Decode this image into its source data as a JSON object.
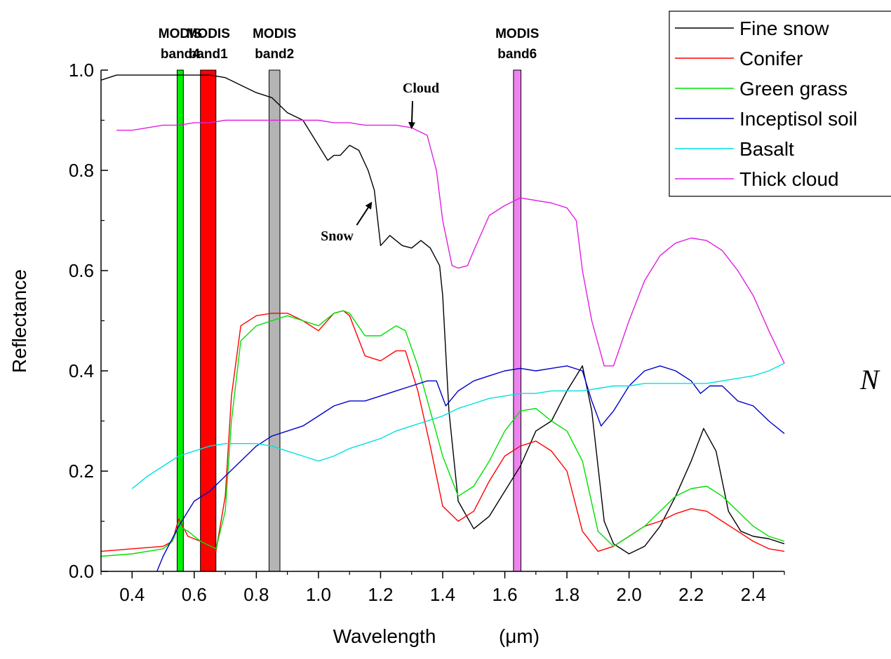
{
  "chart_data": {
    "type": "line",
    "xlabel": "Wavelength",
    "xunit": "(μm)",
    "ylabel": "Reflectance",
    "xlim": [
      0.3,
      2.5
    ],
    "ylim": [
      0.0,
      1.0
    ],
    "x_ticks": [
      "0.4",
      "0.6",
      "0.8",
      "1.0",
      "1.2",
      "1.4",
      "1.6",
      "1.8",
      "2.0",
      "2.2",
      "2.4"
    ],
    "x_tick_values": [
      0.4,
      0.6,
      0.8,
      1.0,
      1.2,
      1.4,
      1.6,
      1.8,
      2.0,
      2.2,
      2.4
    ],
    "y_ticks": [
      "0.0",
      "0.2",
      "0.4",
      "0.6",
      "0.8",
      "1.0"
    ],
    "y_tick_values": [
      0.0,
      0.2,
      0.4,
      0.6,
      0.8,
      1.0
    ],
    "legend_position": "top-right",
    "bands": [
      {
        "line1": "MODIS",
        "line2": "band4",
        "x_start": 0.545,
        "x_end": 0.565,
        "color": "#00ee00"
      },
      {
        "line1": "MODIS",
        "line2": "band1",
        "x_start": 0.62,
        "x_end": 0.67,
        "color": "#ff0000"
      },
      {
        "line1": "MODIS",
        "line2": "band2",
        "x_start": 0.841,
        "x_end": 0.876,
        "color": "#b4b4b4"
      },
      {
        "line1": "MODIS",
        "line2": "band6",
        "x_start": 1.628,
        "x_end": 1.652,
        "color": "#ee82ee"
      }
    ],
    "annotations": [
      {
        "text": "Cloud",
        "x": 1.33,
        "y": 0.955,
        "arrow_to": [
          1.3,
          0.885
        ]
      },
      {
        "text": "Snow",
        "x": 1.06,
        "y": 0.66,
        "arrow_to": [
          1.17,
          0.735
        ]
      }
    ],
    "side_text": "N",
    "series": [
      {
        "name": "Fine snow",
        "color": "#000000",
        "x": [
          0.3,
          0.35,
          0.4,
          0.45,
          0.5,
          0.55,
          0.6,
          0.65,
          0.7,
          0.75,
          0.8,
          0.85,
          0.9,
          0.95,
          1.0,
          1.03,
          1.05,
          1.07,
          1.1,
          1.13,
          1.16,
          1.18,
          1.2,
          1.23,
          1.27,
          1.3,
          1.33,
          1.36,
          1.39,
          1.4,
          1.42,
          1.45,
          1.5,
          1.55,
          1.6,
          1.65,
          1.7,
          1.75,
          1.8,
          1.85,
          1.88,
          1.92,
          1.95,
          2.0,
          2.05,
          2.1,
          2.15,
          2.2,
          2.24,
          2.28,
          2.32,
          2.36,
          2.4,
          2.45,
          2.5
        ],
        "y": [
          0.98,
          0.99,
          0.99,
          0.99,
          0.99,
          0.99,
          0.99,
          0.99,
          0.985,
          0.97,
          0.955,
          0.945,
          0.915,
          0.9,
          0.85,
          0.82,
          0.83,
          0.83,
          0.85,
          0.84,
          0.8,
          0.76,
          0.65,
          0.67,
          0.65,
          0.645,
          0.66,
          0.645,
          0.61,
          0.55,
          0.32,
          0.14,
          0.085,
          0.11,
          0.16,
          0.21,
          0.28,
          0.3,
          0.36,
          0.41,
          0.32,
          0.1,
          0.055,
          0.035,
          0.05,
          0.09,
          0.15,
          0.22,
          0.285,
          0.24,
          0.12,
          0.08,
          0.07,
          0.065,
          0.055
        ]
      },
      {
        "name": "Conifer",
        "color": "#ff0000",
        "x": [
          0.3,
          0.4,
          0.5,
          0.53,
          0.55,
          0.58,
          0.62,
          0.67,
          0.7,
          0.72,
          0.75,
          0.8,
          0.85,
          0.9,
          0.95,
          1.0,
          1.05,
          1.08,
          1.1,
          1.15,
          1.2,
          1.25,
          1.28,
          1.32,
          1.36,
          1.4,
          1.45,
          1.5,
          1.55,
          1.6,
          1.65,
          1.7,
          1.75,
          1.8,
          1.85,
          1.9,
          1.95,
          2.0,
          2.05,
          2.1,
          2.15,
          2.2,
          2.25,
          2.3,
          2.35,
          2.4,
          2.45,
          2.5
        ],
        "y": [
          0.04,
          0.045,
          0.05,
          0.06,
          0.105,
          0.07,
          0.06,
          0.04,
          0.15,
          0.35,
          0.49,
          0.51,
          0.515,
          0.515,
          0.5,
          0.48,
          0.515,
          0.52,
          0.51,
          0.43,
          0.42,
          0.44,
          0.44,
          0.36,
          0.25,
          0.13,
          0.1,
          0.12,
          0.18,
          0.23,
          0.25,
          0.26,
          0.24,
          0.2,
          0.08,
          0.04,
          0.05,
          0.07,
          0.09,
          0.1,
          0.115,
          0.125,
          0.12,
          0.1,
          0.08,
          0.06,
          0.045,
          0.04
        ]
      },
      {
        "name": "Green grass",
        "color": "#00e000",
        "x": [
          0.3,
          0.4,
          0.5,
          0.53,
          0.55,
          0.58,
          0.62,
          0.67,
          0.7,
          0.72,
          0.75,
          0.8,
          0.85,
          0.9,
          0.95,
          1.0,
          1.05,
          1.08,
          1.1,
          1.15,
          1.2,
          1.25,
          1.28,
          1.32,
          1.36,
          1.4,
          1.45,
          1.5,
          1.55,
          1.6,
          1.65,
          1.7,
          1.75,
          1.8,
          1.85,
          1.9,
          1.95,
          2.0,
          2.05,
          2.1,
          2.15,
          2.2,
          2.25,
          2.3,
          2.35,
          2.4,
          2.45,
          2.5
        ],
        "y": [
          0.03,
          0.035,
          0.045,
          0.06,
          0.09,
          0.08,
          0.06,
          0.045,
          0.12,
          0.3,
          0.46,
          0.49,
          0.5,
          0.51,
          0.5,
          0.49,
          0.515,
          0.52,
          0.515,
          0.47,
          0.47,
          0.49,
          0.48,
          0.41,
          0.32,
          0.23,
          0.15,
          0.17,
          0.22,
          0.28,
          0.32,
          0.325,
          0.3,
          0.28,
          0.22,
          0.08,
          0.05,
          0.07,
          0.09,
          0.12,
          0.15,
          0.165,
          0.17,
          0.15,
          0.12,
          0.09,
          0.07,
          0.06
        ]
      },
      {
        "name": "Inceptisol soil",
        "color": "#0000cc",
        "x": [
          0.48,
          0.5,
          0.55,
          0.6,
          0.65,
          0.7,
          0.75,
          0.8,
          0.85,
          0.9,
          0.95,
          1.0,
          1.05,
          1.1,
          1.15,
          1.2,
          1.25,
          1.3,
          1.35,
          1.38,
          1.41,
          1.45,
          1.5,
          1.55,
          1.6,
          1.65,
          1.7,
          1.75,
          1.8,
          1.85,
          1.88,
          1.91,
          1.95,
          2.0,
          2.05,
          2.1,
          2.15,
          2.2,
          2.23,
          2.26,
          2.3,
          2.35,
          2.4,
          2.45,
          2.5
        ],
        "y": [
          0.0,
          0.03,
          0.09,
          0.14,
          0.16,
          0.19,
          0.22,
          0.25,
          0.27,
          0.28,
          0.29,
          0.31,
          0.33,
          0.34,
          0.34,
          0.35,
          0.36,
          0.37,
          0.38,
          0.38,
          0.33,
          0.36,
          0.38,
          0.39,
          0.4,
          0.405,
          0.4,
          0.405,
          0.41,
          0.4,
          0.34,
          0.29,
          0.32,
          0.37,
          0.4,
          0.41,
          0.4,
          0.38,
          0.355,
          0.37,
          0.37,
          0.34,
          0.33,
          0.3,
          0.275
        ]
      },
      {
        "name": "Basalt",
        "color": "#00e0e0",
        "x": [
          0.4,
          0.45,
          0.5,
          0.55,
          0.6,
          0.65,
          0.7,
          0.75,
          0.8,
          0.85,
          0.9,
          0.95,
          1.0,
          1.05,
          1.1,
          1.15,
          1.2,
          1.25,
          1.3,
          1.35,
          1.4,
          1.45,
          1.5,
          1.55,
          1.6,
          1.65,
          1.7,
          1.75,
          1.8,
          1.85,
          1.9,
          1.95,
          2.0,
          2.05,
          2.1,
          2.15,
          2.2,
          2.25,
          2.3,
          2.35,
          2.4,
          2.45,
          2.5
        ],
        "y": [
          0.165,
          0.19,
          0.21,
          0.23,
          0.24,
          0.25,
          0.255,
          0.255,
          0.255,
          0.25,
          0.24,
          0.23,
          0.22,
          0.23,
          0.245,
          0.255,
          0.265,
          0.28,
          0.29,
          0.3,
          0.31,
          0.325,
          0.335,
          0.345,
          0.35,
          0.355,
          0.355,
          0.36,
          0.36,
          0.36,
          0.365,
          0.37,
          0.37,
          0.375,
          0.375,
          0.375,
          0.375,
          0.375,
          0.38,
          0.385,
          0.39,
          0.4,
          0.415
        ]
      },
      {
        "name": "Thick cloud",
        "color": "#e020e0",
        "x": [
          0.35,
          0.4,
          0.45,
          0.5,
          0.55,
          0.6,
          0.65,
          0.7,
          0.75,
          0.8,
          0.85,
          0.9,
          0.95,
          1.0,
          1.05,
          1.1,
          1.15,
          1.2,
          1.25,
          1.3,
          1.35,
          1.38,
          1.4,
          1.43,
          1.45,
          1.48,
          1.5,
          1.55,
          1.6,
          1.65,
          1.7,
          1.75,
          1.8,
          1.83,
          1.85,
          1.88,
          1.92,
          1.95,
          2.0,
          2.05,
          2.1,
          2.15,
          2.2,
          2.25,
          2.3,
          2.35,
          2.4,
          2.45,
          2.5
        ],
        "y": [
          0.88,
          0.88,
          0.885,
          0.89,
          0.89,
          0.895,
          0.895,
          0.9,
          0.9,
          0.9,
          0.9,
          0.9,
          0.9,
          0.9,
          0.895,
          0.895,
          0.89,
          0.89,
          0.89,
          0.885,
          0.87,
          0.8,
          0.7,
          0.61,
          0.605,
          0.61,
          0.64,
          0.71,
          0.73,
          0.745,
          0.74,
          0.735,
          0.725,
          0.7,
          0.6,
          0.5,
          0.41,
          0.41,
          0.5,
          0.58,
          0.63,
          0.655,
          0.665,
          0.66,
          0.64,
          0.6,
          0.55,
          0.48,
          0.415
        ]
      }
    ]
  }
}
